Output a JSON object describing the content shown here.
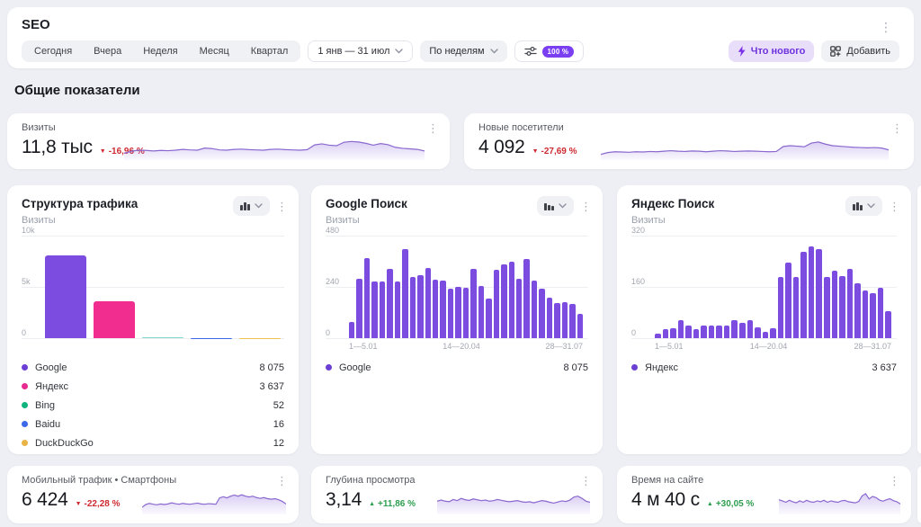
{
  "header": {
    "title": "SEO",
    "presets": [
      "Сегодня",
      "Вчера",
      "Неделя",
      "Месяц",
      "Квартал"
    ],
    "date_range": "1 янв — 31 июл",
    "granularity": "По неделям",
    "sampling_badge": "100 %",
    "whats_new_label": "Что нового",
    "add_label": "Добавить"
  },
  "section": {
    "title": "Общие показатели"
  },
  "colors": {
    "accent_purple": "#7c4ce0",
    "pink": "#f12e90",
    "teal": "#7fd8ce",
    "spark_stroke": "#8a68cf",
    "down_red": "#cd2b31",
    "up_green": "#2e9e4f",
    "badge_purple": "#7b3ff2"
  },
  "kpis": {
    "visits": {
      "title": "Визиты",
      "value": "11,8 тыс",
      "change": "-16,96 %",
      "dir": "down",
      "spark": [
        18,
        26,
        30,
        29,
        27,
        29,
        28,
        30,
        33,
        31,
        30,
        38,
        36,
        31,
        30,
        33,
        34,
        32,
        31,
        30,
        33,
        34,
        32,
        31,
        30,
        32,
        50,
        54,
        49,
        47,
        60,
        63,
        61,
        56,
        49,
        55,
        51,
        41,
        37,
        35,
        33,
        27
      ]
    },
    "new_visitors": {
      "title": "Новые посетители",
      "value": "4 092",
      "change": "-27,69 %",
      "dir": "down",
      "spark": [
        14,
        21,
        24,
        23,
        22,
        24,
        23,
        25,
        24,
        26,
        28,
        26,
        25,
        27,
        26,
        24,
        26,
        28,
        27,
        25,
        26,
        27,
        26,
        25,
        24,
        25,
        44,
        47,
        45,
        43,
        57,
        61,
        53,
        47,
        45,
        43,
        41,
        40,
        39,
        40,
        38,
        31
      ]
    },
    "mobile": {
      "title": "Мобильный трафик • Смартфоны",
      "value": "6 424",
      "change": "-22,28 %",
      "dir": "down",
      "spark": [
        18,
        28,
        32,
        29,
        27,
        30,
        28,
        30,
        34,
        31,
        29,
        32,
        30,
        29,
        31,
        33,
        30,
        29,
        31,
        30,
        29,
        52,
        56,
        52,
        58,
        62,
        58,
        63,
        58,
        55,
        58,
        53,
        50,
        53,
        49,
        47,
        49,
        45,
        39,
        30
      ]
    },
    "depth": {
      "title": "Глубина просмотра",
      "value": "3,14",
      "change": "+11,86 %",
      "dir": "up",
      "spark": [
        40,
        44,
        40,
        38,
        46,
        42,
        50,
        45,
        43,
        48,
        45,
        42,
        44,
        40,
        42,
        46,
        43,
        40,
        38,
        40,
        42,
        38,
        36,
        38,
        34,
        38,
        42,
        40,
        36,
        33,
        37,
        41,
        39,
        44,
        55,
        58,
        50,
        40,
        36
      ]
    },
    "time": {
      "title": "Время на сайте",
      "value": "4 м 40 с",
      "change": "+30,05 %",
      "dir": "up",
      "spark": [
        45,
        41,
        36,
        43,
        38,
        34,
        41,
        36,
        43,
        38,
        36,
        41,
        38,
        43,
        36,
        41,
        38,
        36,
        41,
        43,
        38,
        36,
        34,
        39,
        59,
        67,
        48,
        57,
        53,
        44,
        40,
        45,
        49,
        42,
        38,
        30
      ]
    }
  },
  "chart_data": [
    {
      "id": "traffic_structure",
      "type": "bar",
      "title": "Структура трафика",
      "subtitle": "Визиты",
      "ylim": [
        0,
        10000
      ],
      "yticks": [
        "10k",
        "5k",
        "0"
      ],
      "categories": [
        "Google",
        "Яндекс",
        "Bing",
        "Baidu",
        "DuckDuckGo"
      ],
      "values": [
        8075,
        3637,
        52,
        16,
        12
      ],
      "bar_colors": [
        "#7c4ce0",
        "#f12e90",
        "#7fd8ce",
        "#3b69e8",
        "#eec24f"
      ],
      "legend": [
        {
          "label": "Google",
          "value": "8 075",
          "color": "#6b3fd4"
        },
        {
          "label": "Яндекс",
          "value": "3 637",
          "color": "#e62a8f"
        },
        {
          "label": "Bing",
          "value": "52",
          "color": "#0fb37d"
        },
        {
          "label": "Baidu",
          "value": "16",
          "color": "#3b69e8"
        },
        {
          "label": "DuckDuckGo",
          "value": "12",
          "color": "#e8b445"
        }
      ]
    },
    {
      "id": "google_search",
      "type": "bar",
      "title": "Google Поиск",
      "subtitle": "Визиты",
      "ylim": [
        0,
        480
      ],
      "yticks": [
        "480",
        "240",
        "0"
      ],
      "xticks": [
        "1—5.01",
        "14—20.04",
        "28—31.07"
      ],
      "color": "#7c4ce0",
      "values": [
        75,
        280,
        375,
        265,
        265,
        325,
        265,
        415,
        285,
        295,
        330,
        275,
        270,
        230,
        240,
        235,
        325,
        245,
        185,
        320,
        345,
        360,
        280,
        370,
        270,
        230,
        190,
        165,
        170,
        160,
        115
      ],
      "legend": [
        {
          "label": "Google",
          "value": "8 075",
          "color": "#6b3fd4"
        }
      ]
    },
    {
      "id": "yandex_search",
      "type": "bar",
      "title": "Яндекс Поиск",
      "subtitle": "Визиты",
      "ylim": [
        0,
        320
      ],
      "yticks": [
        "320",
        "160",
        "0"
      ],
      "xticks": [
        "1—5.01",
        "14—20.04",
        "28—31.07"
      ],
      "color": "#7c4ce0",
      "values": [
        15,
        28,
        30,
        55,
        40,
        28,
        38,
        38,
        40,
        40,
        55,
        48,
        55,
        35,
        20,
        30,
        190,
        235,
        190,
        270,
        285,
        278,
        190,
        210,
        195,
        215,
        172,
        148,
        140,
        158,
        85
      ],
      "legend": [
        {
          "label": "Яндекс",
          "value": "3 637",
          "color": "#6b3fd4"
        }
      ]
    }
  ]
}
